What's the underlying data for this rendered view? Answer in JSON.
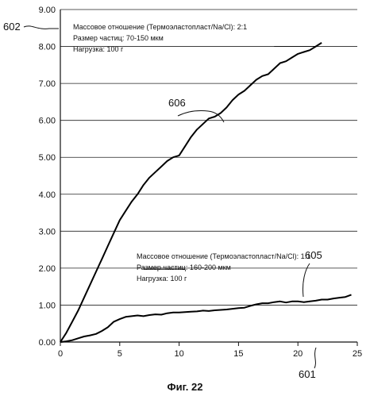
{
  "chart_data": {
    "type": "line",
    "title": "",
    "xlabel": "",
    "ylabel": "",
    "xlim": [
      0,
      25
    ],
    "ylim": [
      0,
      9
    ],
    "xticks": [
      "0",
      "5",
      "10",
      "15",
      "20",
      "25"
    ],
    "yticks": [
      "0.00",
      "1.00",
      "2.00",
      "3.00",
      "4.00",
      "5.00",
      "6.00",
      "7.00",
      "8.00",
      "9.00"
    ],
    "grid": "horizontal",
    "series": [
      {
        "x": [
          0,
          0.5,
          1,
          1.5,
          2,
          2.5,
          3,
          3.5,
          4,
          4.5,
          5,
          5.5,
          6,
          6.5,
          7,
          7.5,
          8,
          8.5,
          9,
          9.5,
          10,
          10.5,
          11,
          11.5,
          12,
          12.5,
          13,
          13.5,
          14,
          14.5,
          15,
          15.5,
          16,
          16.5,
          17,
          17.5,
          18,
          18.5,
          19,
          19.5,
          20,
          20.5,
          21,
          21.5,
          22
        ],
        "values": [
          0,
          0.25,
          0.55,
          0.85,
          1.2,
          1.55,
          1.9,
          2.25,
          2.6,
          2.95,
          3.3,
          3.55,
          3.8,
          4.0,
          4.25,
          4.45,
          4.6,
          4.75,
          4.9,
          5.0,
          5.05,
          5.3,
          5.55,
          5.75,
          5.9,
          6.05,
          6.1,
          6.2,
          6.35,
          6.55,
          6.7,
          6.8,
          6.95,
          7.1,
          7.2,
          7.25,
          7.4,
          7.55,
          7.6,
          7.7,
          7.8,
          7.85,
          7.9,
          8.0,
          8.1
        ]
      },
      {
        "x": [
          0,
          0.5,
          1,
          1.5,
          2,
          2.5,
          3,
          3.5,
          4,
          4.5,
          5,
          5.5,
          6,
          6.5,
          7,
          7.5,
          8,
          8.5,
          9,
          9.5,
          10,
          10.5,
          11,
          11.5,
          12,
          12.5,
          13,
          13.5,
          14,
          14.5,
          15,
          15.5,
          16,
          16.5,
          17,
          17.5,
          18,
          18.5,
          19,
          19.5,
          20,
          20.5,
          21,
          21.5,
          22,
          22.5,
          23,
          23.5,
          24,
          24.5
        ],
        "values": [
          0,
          0.02,
          0.05,
          0.1,
          0.15,
          0.18,
          0.22,
          0.3,
          0.4,
          0.55,
          0.62,
          0.68,
          0.7,
          0.72,
          0.7,
          0.73,
          0.75,
          0.74,
          0.78,
          0.8,
          0.8,
          0.81,
          0.82,
          0.83,
          0.85,
          0.84,
          0.86,
          0.87,
          0.88,
          0.9,
          0.92,
          0.93,
          0.98,
          1.02,
          1.05,
          1.05,
          1.08,
          1.1,
          1.07,
          1.1,
          1.1,
          1.08,
          1.1,
          1.12,
          1.15,
          1.15,
          1.18,
          1.2,
          1.22,
          1.28
        ]
      }
    ],
    "annotations": [
      {
        "lines": [
          "Массовое отношение (Термоэластопласт/Na/Cl): 2:1",
          "Размер частиц: 70-150 мкм",
          "Нагрузка: 100 г"
        ]
      },
      {
        "lines": [
          "Массовое отношение (Термоэластопласт/Na/Cl): 1:1",
          "Размер частиц: 160-200 мкм",
          "Нагрузка: 100 г"
        ]
      }
    ],
    "reference_numerals": [
      "602",
      "606",
      "605",
      "601"
    ]
  },
  "figure_caption": "Фиг. 22"
}
